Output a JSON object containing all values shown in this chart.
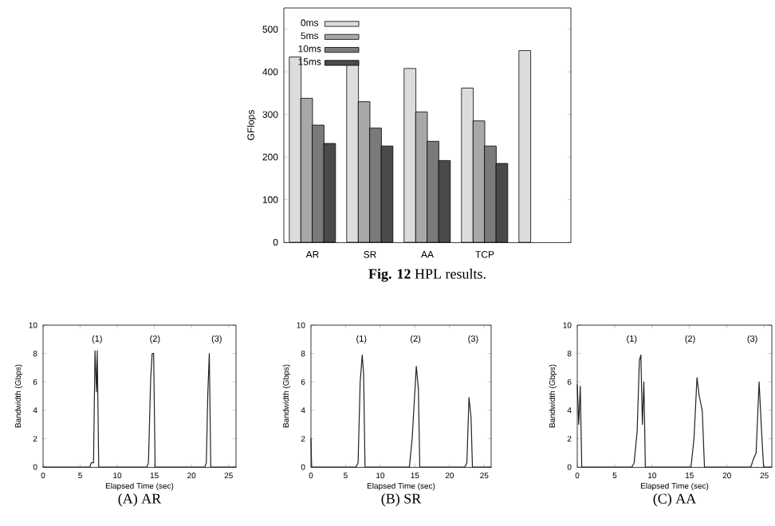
{
  "chart_data": [
    {
      "type": "bar",
      "title": "**Fig. 12**  HPL results.",
      "ylabel": "GFlops",
      "categories": [
        "AR",
        "SR",
        "AA",
        "TCP",
        null
      ],
      "series": [
        {
          "name": "0ms",
          "color": "#dcdcdc",
          "values": [
            435,
            422,
            408,
            362,
            450
          ]
        },
        {
          "name": "5ms",
          "color": "#a8a8a8",
          "values": [
            338,
            330,
            306,
            285,
            null
          ]
        },
        {
          "name": "10ms",
          "color": "#7a7a7a",
          "values": [
            275,
            268,
            237,
            226,
            null
          ]
        },
        {
          "name": "15ms",
          "color": "#4a4a4a",
          "values": [
            232,
            226,
            192,
            185,
            null
          ]
        }
      ],
      "ylim": [
        0,
        550
      ],
      "yticks": [
        0,
        100,
        200,
        300,
        400,
        500
      ],
      "legend": "top left"
    },
    {
      "type": "line",
      "title": "(A) AR",
      "xlabel": "Elapsed Time (sec)",
      "ylabel": "Bandwidth (Gbps)",
      "series": [
        {
          "color": "#222222",
          "x": [
            0,
            6.3,
            6.5,
            6.8,
            7.0,
            7.2,
            7.3,
            7.5,
            14,
            14.2,
            14.5,
            14.7,
            14.9,
            15.1,
            21.8,
            22,
            22.2,
            22.4,
            22.6,
            26
          ],
          "values": [
            0,
            0,
            0.3,
            0.3,
            8.2,
            5.3,
            8.2,
            0,
            0,
            0.3,
            6.2,
            8,
            8,
            0,
            0,
            0.3,
            5.2,
            8,
            0,
            0
          ]
        }
      ],
      "xlim": [
        0,
        26
      ],
      "xticks": [
        0,
        5,
        10,
        15,
        20,
        25
      ],
      "ylim": [
        0,
        10
      ],
      "yticks": [
        0,
        2,
        4,
        6,
        8,
        10
      ],
      "annotations": [
        "(1)",
        "(2)",
        "(3)"
      ]
    },
    {
      "type": "line",
      "title": "(B) SR",
      "xlabel": "Elapsed Time (sec)",
      "ylabel": "Bandwidth (Gbps)",
      "series": [
        {
          "color": "#222222",
          "x": [
            0,
            0.1,
            6.5,
            6.8,
            7.1,
            7.4,
            7.6,
            7.8,
            14.2,
            14.6,
            15.2,
            15.5,
            15.7,
            22.2,
            22.5,
            22.8,
            23.1,
            23.3,
            26
          ],
          "values": [
            2,
            0,
            0,
            0.3,
            6,
            7.9,
            6.5,
            0,
            0,
            2,
            7.1,
            5.5,
            0,
            0,
            0.3,
            4.9,
            3.5,
            0,
            0
          ]
        }
      ],
      "xlim": [
        0,
        26
      ],
      "xticks": [
        0,
        5,
        10,
        15,
        20,
        25
      ],
      "ylim": [
        0,
        10
      ],
      "yticks": [
        0,
        2,
        4,
        6,
        8,
        10
      ],
      "annotations": [
        "(1)",
        "(2)",
        "(3)"
      ]
    },
    {
      "type": "line",
      "title": "(C) AA",
      "xlabel": "Elapsed Time (sec)",
      "ylabel": "Bandwidth (Gbps)",
      "series": [
        {
          "color": "#222222",
          "x": [
            0,
            0.2,
            0.4,
            0.6,
            7.3,
            7.6,
            8,
            8.3,
            8.5,
            8.7,
            8.9,
            9.1,
            15.2,
            15.6,
            16,
            16.3,
            16.7,
            17,
            23.2,
            23.5,
            23.9,
            24.3,
            24.6,
            24.9,
            26
          ],
          "values": [
            5.8,
            3,
            5.7,
            0,
            0,
            0.3,
            2.5,
            7.5,
            7.9,
            3,
            6,
            0,
            0,
            2,
            6.3,
            5,
            4,
            0,
            0,
            0.5,
            1,
            6,
            2.8,
            0,
            0
          ]
        }
      ],
      "xlim": [
        0,
        26
      ],
      "xticks": [
        0,
        5,
        10,
        15,
        20,
        25
      ],
      "ylim": [
        0,
        10
      ],
      "yticks": [
        0,
        2,
        4,
        6,
        8,
        10
      ],
      "annotations": [
        "(1)",
        "(2)",
        "(3)"
      ]
    }
  ]
}
